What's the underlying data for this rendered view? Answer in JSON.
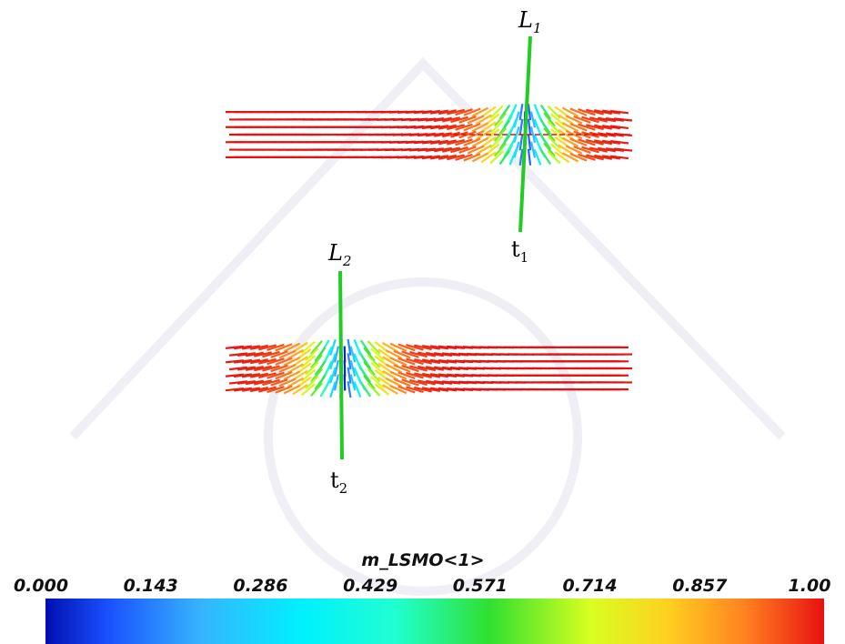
{
  "labels": {
    "l1": {
      "main": "L",
      "sub": "1"
    },
    "t1": {
      "main": "t",
      "sub": "1"
    },
    "l2": {
      "main": "L",
      "sub": "2"
    },
    "t2": {
      "main": "t",
      "sub": "2"
    }
  },
  "colorbar": {
    "title": "m_LSMO<1>",
    "ticks": [
      "0.000",
      "0.143",
      "0.286",
      "0.429",
      "0.571",
      "0.714",
      "0.857",
      "1.00"
    ]
  }
}
